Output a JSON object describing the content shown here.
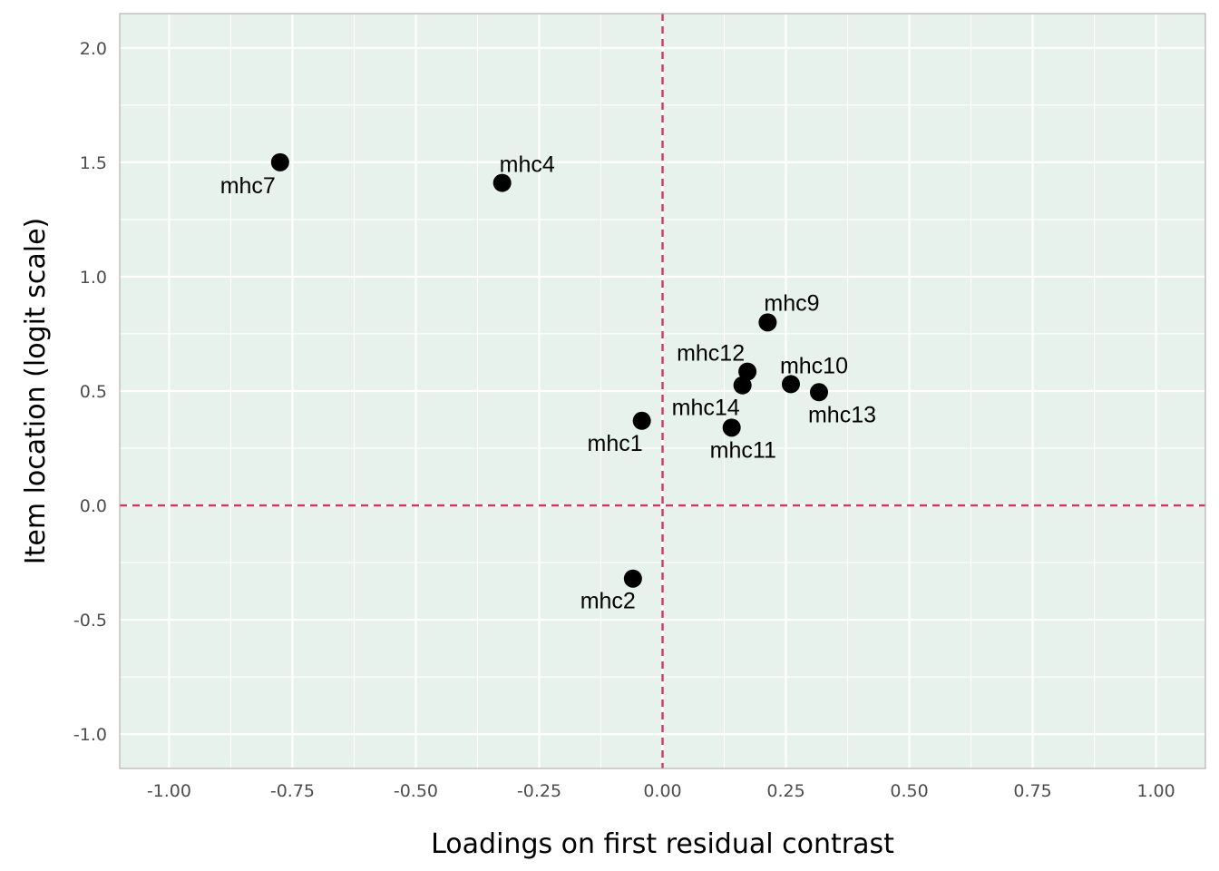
{
  "chart_data": {
    "type": "scatter",
    "title": "",
    "xlabel": "Loadings on first residual contrast",
    "ylabel": "Item location (logit scale)",
    "xlim": [
      -1.1,
      1.1
    ],
    "ylim": [
      -1.15,
      2.15
    ],
    "x_ticks": [
      -1.0,
      -0.75,
      -0.5,
      -0.25,
      0.0,
      0.25,
      0.5,
      0.75,
      1.0
    ],
    "x_tick_labels": [
      "-1.00",
      "-0.75",
      "-0.50",
      "-0.25",
      "0.00",
      "0.25",
      "0.50",
      "0.75",
      "1.00"
    ],
    "y_ticks": [
      -1.0,
      -0.5,
      0.0,
      0.5,
      1.0,
      1.5,
      2.0
    ],
    "y_tick_labels": [
      "-1.0",
      "-0.5",
      "0.0",
      "0.5",
      "1.0",
      "1.5",
      "2.0"
    ],
    "grid": true,
    "reference_lines": {
      "x": 0,
      "y": 0
    },
    "colors": {
      "panel_background": "#e6f2eb",
      "grid": "#ffffff",
      "panel_border": "#b3b3b3",
      "reference_line": "#d6336c",
      "point": "#000000"
    },
    "points": [
      {
        "label": "mhc7",
        "x": -0.775,
        "y": 1.5
      },
      {
        "label": "mhc4",
        "x": -0.325,
        "y": 1.41
      },
      {
        "label": "mhc9",
        "x": 0.213,
        "y": 0.8
      },
      {
        "label": "mhc12",
        "x": 0.172,
        "y": 0.585
      },
      {
        "label": "mhc10",
        "x": 0.26,
        "y": 0.53
      },
      {
        "label": "mhc14",
        "x": 0.162,
        "y": 0.525
      },
      {
        "label": "mhc13",
        "x": 0.317,
        "y": 0.495
      },
      {
        "label": "mhc1",
        "x": -0.042,
        "y": 0.37
      },
      {
        "label": "mhc11",
        "x": 0.14,
        "y": 0.34
      },
      {
        "label": "mhc2",
        "x": -0.06,
        "y": -0.32
      }
    ]
  }
}
